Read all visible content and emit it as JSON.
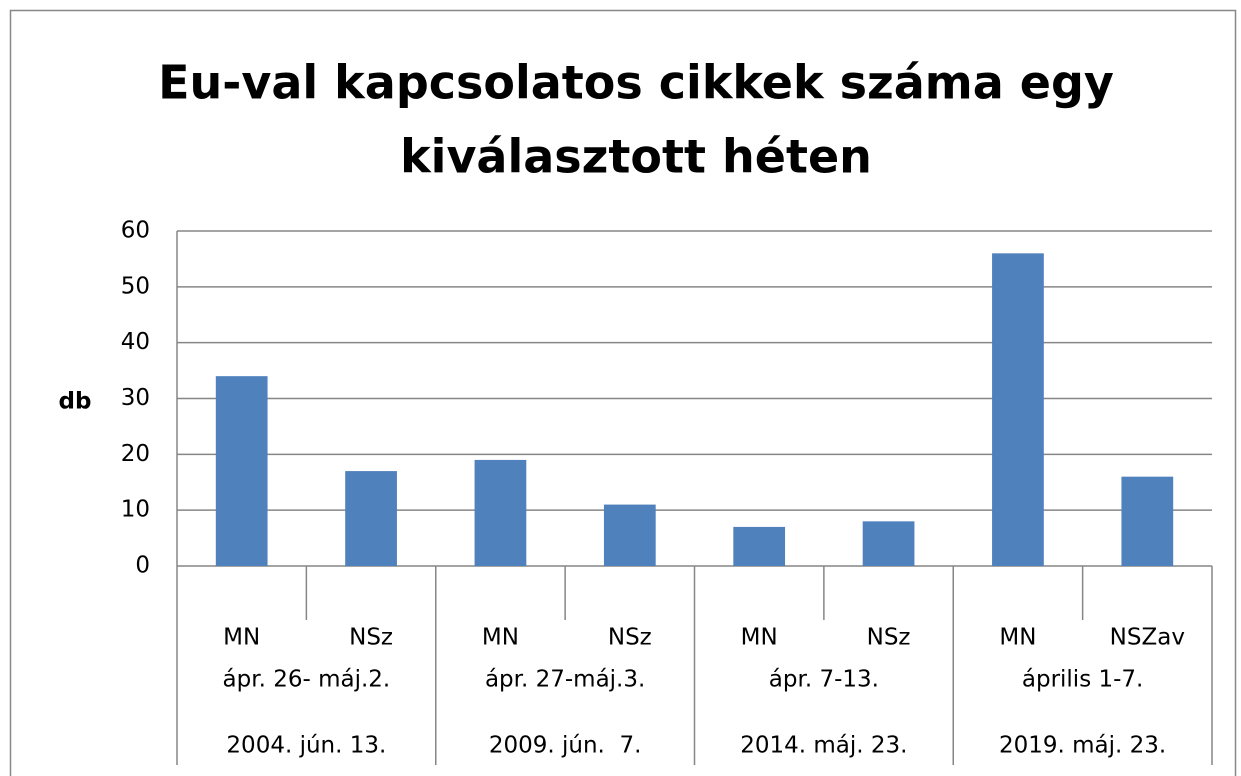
{
  "chart_data": {
    "type": "bar",
    "title": [
      "Eu-val kapcsolatos cikkek száma egy",
      "kiválasztott héten"
    ],
    "y_label": "db",
    "categories": [
      "MN",
      "NSz",
      "MN",
      "NSz",
      "MN",
      "NSz",
      "MN",
      "NSZav"
    ],
    "group_labels": [
      "ápr. 26- máj.2.",
      "ápr. 27-máj.3.",
      "ápr. 7-13.",
      "április 1-7."
    ],
    "period_labels": [
      "2004. jún. 13.",
      "2009. jún.  7.",
      "2014. máj. 23.",
      "2019. máj. 23."
    ],
    "values": [
      34,
      17,
      19,
      11,
      7,
      8,
      56,
      16
    ],
    "color": "#4f81bd",
    "ylim": [
      0,
      60
    ],
    "yticks": [
      0,
      10,
      20,
      30,
      40,
      50,
      60
    ],
    "grid": true
  }
}
